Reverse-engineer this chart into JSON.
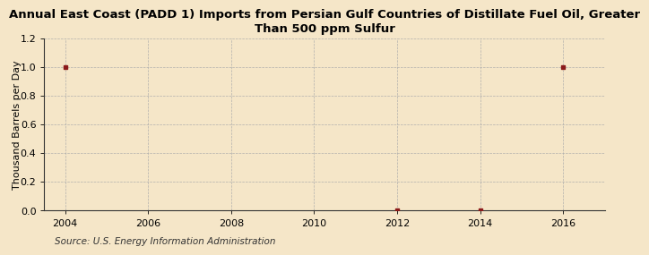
{
  "title": "Annual East Coast (PADD 1) Imports from Persian Gulf Countries of Distillate Fuel Oil, Greater\nThan 500 ppm Sulfur",
  "ylabel": "Thousand Barrels per Day",
  "source": "Source: U.S. Energy Information Administration",
  "background_color": "#f5e6c8",
  "plot_bg_color": "#f5e6c8",
  "data_x": [
    2004,
    2012,
    2014,
    2016
  ],
  "data_y": [
    1.0,
    0.0,
    0.0,
    1.0
  ],
  "marker_color": "#8b1a1a",
  "xlim": [
    2003.5,
    2017
  ],
  "ylim": [
    0.0,
    1.2
  ],
  "xticks": [
    2004,
    2006,
    2008,
    2010,
    2012,
    2014,
    2016
  ],
  "yticks": [
    0.0,
    0.2,
    0.4,
    0.6,
    0.8,
    1.0,
    1.2
  ],
  "grid_color": "#aaaaaa",
  "title_fontsize": 9.5,
  "axis_fontsize": 8,
  "source_fontsize": 7.5
}
